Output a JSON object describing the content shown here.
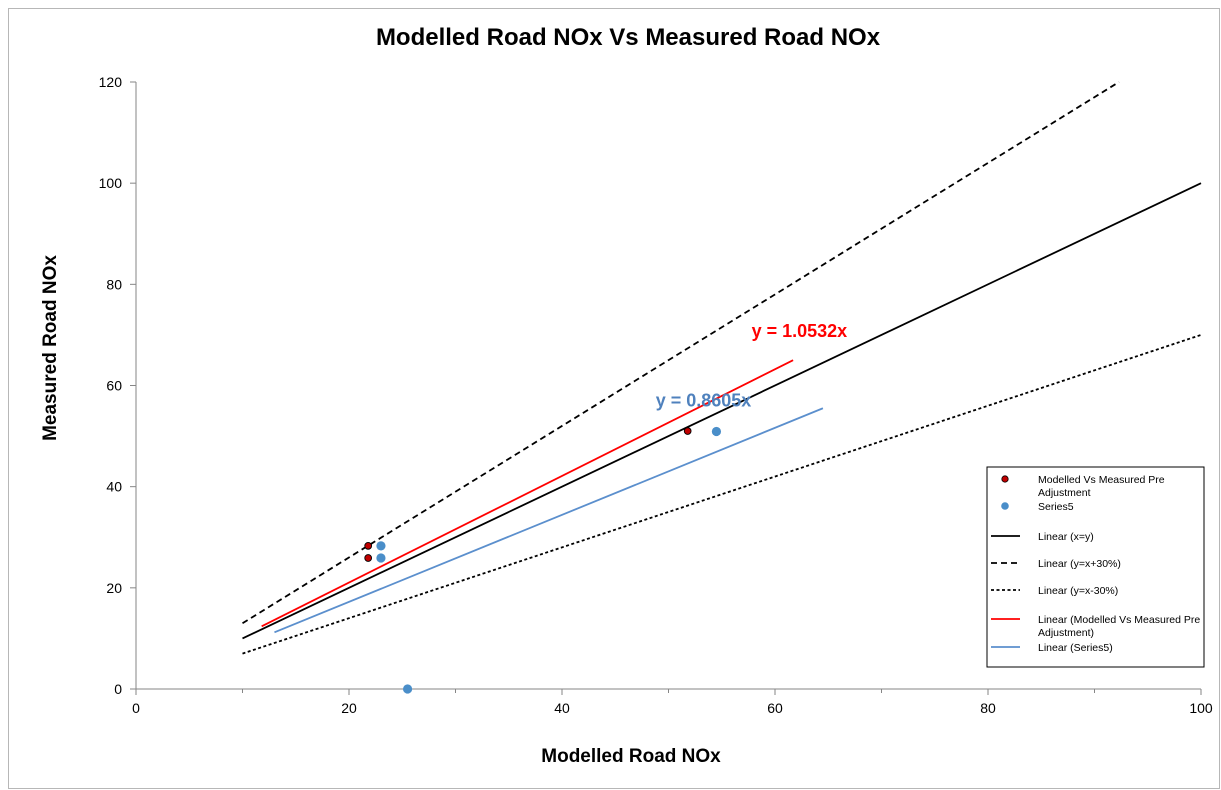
{
  "chart_data": {
    "type": "scatter",
    "title": "Modelled Road NOx Vs Measured Road NOx",
    "xlabel": "Modelled Road NOx",
    "ylabel": "Measured Road NOx",
    "xlim": [
      0,
      100
    ],
    "ylim": [
      0,
      120
    ],
    "xticks": [
      "0",
      "20",
      "40",
      "60",
      "80",
      "100"
    ],
    "yticks": [
      "0",
      "20",
      "40",
      "60",
      "80",
      "100",
      "120"
    ],
    "x_tick_step": 20,
    "y_tick_step": 20,
    "grid": false,
    "legend_position": "bottom-right",
    "series": [
      {
        "name": "Modelled Vs Measured Pre Adjustment",
        "kind": "points",
        "color": "#c00000",
        "x": [
          21.8,
          21.8,
          51.8
        ],
        "y": [
          28.3,
          25.9,
          51.0
        ]
      },
      {
        "name": "Series5",
        "kind": "points",
        "color": "#4a8ec9",
        "x": [
          23.0,
          23.0,
          25.5,
          54.5
        ],
        "y": [
          28.3,
          25.9,
          0.0,
          50.9
        ]
      }
    ],
    "lines": [
      {
        "name": "Linear (x=y)",
        "color": "#000000",
        "style": "solid",
        "x": [
          10,
          100
        ],
        "y": [
          10,
          100
        ]
      },
      {
        "name": "Linear (y=x+30%)",
        "color": "#000000",
        "style": "dashed",
        "x": [
          10,
          92.3
        ],
        "y": [
          13,
          120
        ]
      },
      {
        "name": "Linear (y=x-30%)",
        "color": "#000000",
        "style": "dotted",
        "x": [
          10,
          100
        ],
        "y": [
          7,
          70
        ]
      },
      {
        "name": "Linear (Modelled Vs Measured Pre Adjustment)",
        "color": "#ff0000",
        "style": "solid",
        "x": [
          11.8,
          61.7
        ],
        "y": [
          12.4,
          65.0
        ]
      },
      {
        "name": "Linear (Series5)",
        "color": "#5b8fcd",
        "style": "solid",
        "x": [
          13.0,
          64.5
        ],
        "y": [
          11.2,
          55.5
        ]
      }
    ],
    "annotations": [
      {
        "text": "y = 1.0532x",
        "color": "#ff0000",
        "x": 57.8,
        "y": 69.6
      },
      {
        "text": "y = 0.8605x",
        "color": "#4f81bd",
        "x": 48.8,
        "y": 55.8
      }
    ]
  }
}
